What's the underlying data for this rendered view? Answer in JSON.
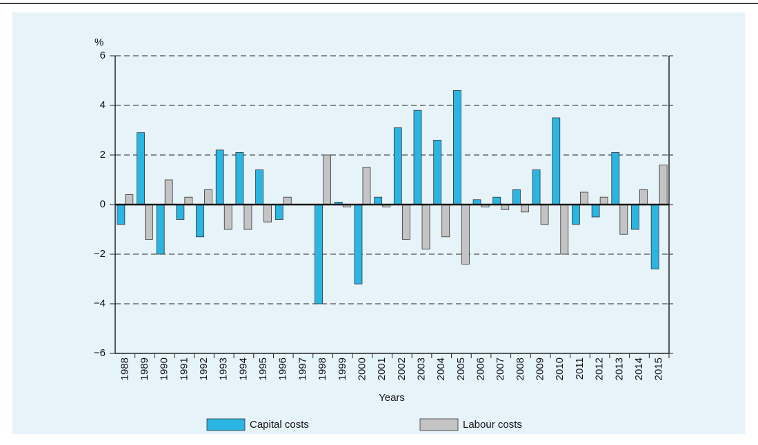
{
  "chart_data": {
    "type": "bar",
    "y_label": "%",
    "x_label": "Years",
    "categories": [
      "1988",
      "1989",
      "1990",
      "1991",
      "1992",
      "1993",
      "1994",
      "1995",
      "1996",
      "1997",
      "1998",
      "1999",
      "2000",
      "2001",
      "2002",
      "2003",
      "2004",
      "2005",
      "2006",
      "2007",
      "2008",
      "2009",
      "2010",
      "2011",
      "2012",
      "2013",
      "2014",
      "2015"
    ],
    "series": [
      {
        "name": "Capital costs",
        "color": "#2bb5e3",
        "values": [
          -0.8,
          2.9,
          -2.0,
          -0.6,
          -1.3,
          2.2,
          2.1,
          1.4,
          -0.6,
          0,
          -4.0,
          0.1,
          -3.2,
          0.3,
          3.1,
          3.8,
          2.6,
          4.6,
          0.2,
          0.3,
          0.6,
          1.4,
          3.5,
          -0.8,
          -0.5,
          2.1,
          -1.0,
          -2.6
        ]
      },
      {
        "name": "Labour costs",
        "color": "#c4c4c4",
        "values": [
          0.4,
          -1.4,
          1.0,
          0.3,
          0.6,
          -1.0,
          -1.0,
          -0.7,
          0.3,
          0,
          2.0,
          -0.1,
          1.5,
          -0.1,
          -1.4,
          -1.8,
          -1.3,
          -2.4,
          -0.1,
          -0.2,
          -0.3,
          -0.8,
          -2.0,
          0.5,
          0.3,
          -1.2,
          0.6,
          1.6
        ]
      }
    ],
    "ylim": [
      -6,
      6
    ],
    "yticks": [
      {
        "value": -6,
        "label": "−6"
      },
      {
        "value": -4,
        "label": "−4"
      },
      {
        "value": -2,
        "label": "−2"
      },
      0,
      2,
      4,
      6
    ],
    "grid": true
  }
}
